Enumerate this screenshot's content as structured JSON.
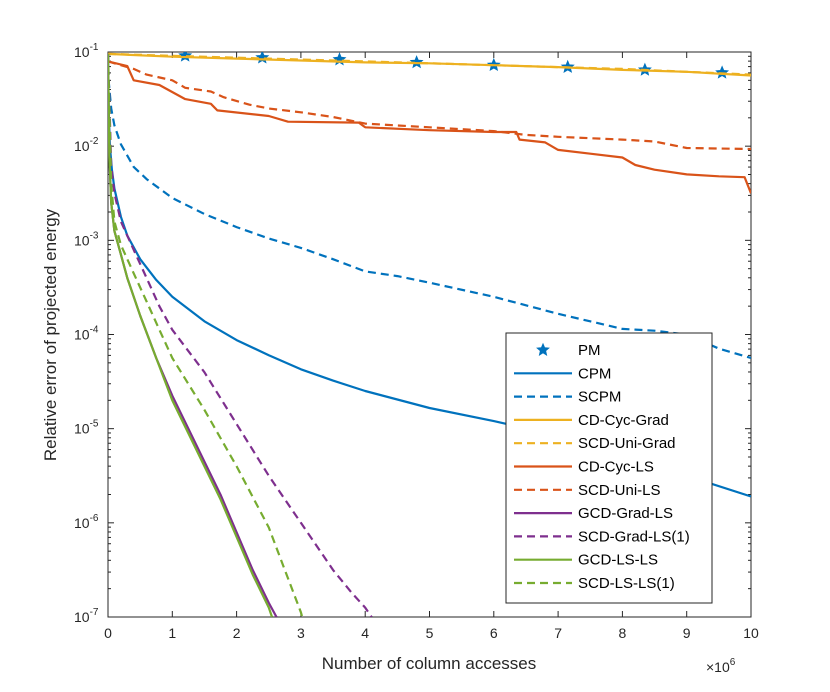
{
  "chart_data": {
    "type": "line",
    "title": "",
    "xlabel": "Number of column accesses",
    "ylabel": "Relative error of projected energy",
    "x_multiplier": "×10",
    "x_exponent": "6",
    "xlim": [
      0,
      10
    ],
    "ylim_log10": [
      -7,
      -1
    ],
    "yscale": "log",
    "x_ticks": [
      0,
      1,
      2,
      3,
      4,
      5,
      6,
      7,
      8,
      9,
      10
    ],
    "x_tick_labels": [
      "0",
      "1",
      "2",
      "3",
      "4",
      "5",
      "6",
      "7",
      "8",
      "9",
      "10"
    ],
    "y_ticks_log10": [
      -7,
      -6,
      -5,
      -4,
      -3,
      -2,
      -1
    ],
    "y_tick_labels": [
      {
        "base": "10",
        "exp": "-7"
      },
      {
        "base": "10",
        "exp": "-6"
      },
      {
        "base": "10",
        "exp": "-5"
      },
      {
        "base": "10",
        "exp": "-4"
      },
      {
        "base": "10",
        "exp": "-3"
      },
      {
        "base": "10",
        "exp": "-2"
      },
      {
        "base": "10",
        "exp": "-1"
      }
    ],
    "legend_position": "lower-right",
    "series": [
      {
        "name": "PM",
        "color": "#0072BD",
        "style": "marker-star",
        "points": [
          [
            1.2,
            -1.04
          ],
          [
            2.4,
            -1.06
          ],
          [
            3.6,
            -1.08
          ],
          [
            4.8,
            -1.11
          ],
          [
            6.0,
            -1.14
          ],
          [
            7.15,
            -1.16
          ],
          [
            8.35,
            -1.19
          ],
          [
            9.55,
            -1.22
          ]
        ]
      },
      {
        "name": "CPM",
        "color": "#0072BD",
        "style": "solid",
        "points": [
          [
            0,
            -1.02
          ],
          [
            0.01,
            -1.6
          ],
          [
            0.03,
            -2.0
          ],
          [
            0.06,
            -2.25
          ],
          [
            0.1,
            -2.45
          ],
          [
            0.2,
            -2.75
          ],
          [
            0.3,
            -2.95
          ],
          [
            0.5,
            -3.2
          ],
          [
            0.75,
            -3.42
          ],
          [
            1.0,
            -3.6
          ],
          [
            1.5,
            -3.86
          ],
          [
            2.0,
            -4.06
          ],
          [
            2.5,
            -4.22
          ],
          [
            3.0,
            -4.37
          ],
          [
            3.5,
            -4.49
          ],
          [
            4.0,
            -4.6
          ],
          [
            5.0,
            -4.78
          ],
          [
            6.0,
            -4.92
          ],
          [
            7.0,
            -5.07
          ],
          [
            8.0,
            -5.23
          ],
          [
            9.0,
            -5.5
          ],
          [
            10.0,
            -5.72
          ]
        ]
      },
      {
        "name": "SCPM",
        "color": "#0072BD",
        "style": "dashed",
        "points": [
          [
            0,
            -1.02
          ],
          [
            0.01,
            -1.3
          ],
          [
            0.05,
            -1.6
          ],
          [
            0.1,
            -1.78
          ],
          [
            0.2,
            -1.98
          ],
          [
            0.4,
            -2.22
          ],
          [
            0.6,
            -2.35
          ],
          [
            0.8,
            -2.45
          ],
          [
            1.0,
            -2.55
          ],
          [
            1.5,
            -2.72
          ],
          [
            2.0,
            -2.86
          ],
          [
            2.5,
            -2.98
          ],
          [
            3.0,
            -3.08
          ],
          [
            3.5,
            -3.2
          ],
          [
            4.0,
            -3.33
          ],
          [
            4.5,
            -3.38
          ],
          [
            5.0,
            -3.45
          ],
          [
            6.0,
            -3.6
          ],
          [
            7.0,
            -3.78
          ],
          [
            8.0,
            -3.94
          ],
          [
            8.5,
            -3.96
          ],
          [
            9.0,
            -4.0
          ],
          [
            9.5,
            -4.15
          ],
          [
            10.0,
            -4.25
          ]
        ]
      },
      {
        "name": "CD-Cyc-Grad",
        "color": "#EDB120",
        "style": "solid",
        "points": [
          [
            0,
            -1.02
          ],
          [
            1,
            -1.05
          ],
          [
            2,
            -1.07
          ],
          [
            3,
            -1.09
          ],
          [
            4,
            -1.11
          ],
          [
            5,
            -1.12
          ],
          [
            6,
            -1.14
          ],
          [
            7,
            -1.16
          ],
          [
            8,
            -1.19
          ],
          [
            9,
            -1.21
          ],
          [
            10,
            -1.25
          ]
        ]
      },
      {
        "name": "SCD-Uni-Grad",
        "color": "#EDB120",
        "style": "dashed",
        "points": [
          [
            0,
            -1.02
          ],
          [
            1,
            -1.04
          ],
          [
            2,
            -1.06
          ],
          [
            3,
            -1.08
          ],
          [
            4,
            -1.1
          ],
          [
            5,
            -1.12
          ],
          [
            6,
            -1.14
          ],
          [
            7,
            -1.16
          ],
          [
            8,
            -1.18
          ],
          [
            9,
            -1.21
          ],
          [
            10,
            -1.24
          ]
        ]
      },
      {
        "name": "CD-Cyc-LS",
        "color": "#D95319",
        "style": "solid",
        "points": [
          [
            0,
            -1.1
          ],
          [
            0.3,
            -1.15
          ],
          [
            0.4,
            -1.3
          ],
          [
            0.8,
            -1.35
          ],
          [
            1.2,
            -1.5
          ],
          [
            1.6,
            -1.55
          ],
          [
            1.7,
            -1.62
          ],
          [
            2.5,
            -1.68
          ],
          [
            2.8,
            -1.74
          ],
          [
            3.9,
            -1.75
          ],
          [
            4.0,
            -1.8
          ],
          [
            5.0,
            -1.83
          ],
          [
            6.0,
            -1.85
          ],
          [
            6.35,
            -1.85
          ],
          [
            6.4,
            -1.93
          ],
          [
            6.8,
            -1.96
          ],
          [
            7.0,
            -2.04
          ],
          [
            7.5,
            -2.08
          ],
          [
            8.0,
            -2.12
          ],
          [
            8.2,
            -2.2
          ],
          [
            8.5,
            -2.25
          ],
          [
            9.0,
            -2.3
          ],
          [
            9.5,
            -2.32
          ],
          [
            9.9,
            -2.33
          ],
          [
            10.0,
            -2.5
          ]
        ]
      },
      {
        "name": "SCD-Uni-LS",
        "color": "#D95319",
        "style": "dashed",
        "points": [
          [
            0,
            -1.1
          ],
          [
            0.4,
            -1.18
          ],
          [
            0.6,
            -1.24
          ],
          [
            1.0,
            -1.3
          ],
          [
            1.2,
            -1.38
          ],
          [
            1.6,
            -1.42
          ],
          [
            1.8,
            -1.48
          ],
          [
            2.2,
            -1.56
          ],
          [
            2.5,
            -1.6
          ],
          [
            3.0,
            -1.64
          ],
          [
            3.5,
            -1.69
          ],
          [
            4.0,
            -1.76
          ],
          [
            5.0,
            -1.8
          ],
          [
            6.0,
            -1.84
          ],
          [
            6.5,
            -1.88
          ],
          [
            7.0,
            -1.9
          ],
          [
            8.0,
            -1.93
          ],
          [
            8.5,
            -1.95
          ],
          [
            9.0,
            -2.02
          ],
          [
            10.0,
            -2.03
          ]
        ]
      },
      {
        "name": "GCD-Grad-LS",
        "color": "#7E2F8E",
        "style": "solid",
        "points": [
          [
            0,
            -1.02
          ],
          [
            0.02,
            -2.1
          ],
          [
            0.05,
            -2.6
          ],
          [
            0.1,
            -2.9
          ],
          [
            0.2,
            -3.15
          ],
          [
            0.3,
            -3.4
          ],
          [
            0.5,
            -3.8
          ],
          [
            0.75,
            -4.25
          ],
          [
            1.0,
            -4.65
          ],
          [
            1.25,
            -5.0
          ],
          [
            1.5,
            -5.35
          ],
          [
            1.75,
            -5.7
          ],
          [
            2.0,
            -6.1
          ],
          [
            2.25,
            -6.5
          ],
          [
            2.5,
            -6.85
          ],
          [
            2.62,
            -7.0
          ]
        ]
      },
      {
        "name": "SCD-Grad-LS(1)",
        "color": "#7E2F8E",
        "style": "dashed",
        "points": [
          [
            0,
            -1.02
          ],
          [
            0.05,
            -2.2
          ],
          [
            0.1,
            -2.5
          ],
          [
            0.2,
            -2.8
          ],
          [
            0.4,
            -3.1
          ],
          [
            0.6,
            -3.4
          ],
          [
            0.8,
            -3.7
          ],
          [
            1.0,
            -3.95
          ],
          [
            1.5,
            -4.4
          ],
          [
            2.0,
            -4.95
          ],
          [
            2.5,
            -5.5
          ],
          [
            3.0,
            -6.0
          ],
          [
            3.5,
            -6.5
          ],
          [
            3.8,
            -6.75
          ],
          [
            4.0,
            -6.9
          ],
          [
            4.1,
            -7.0
          ]
        ]
      },
      {
        "name": "GCD-LS-LS",
        "color": "#77AC30",
        "style": "solid",
        "points": [
          [
            0,
            -1.02
          ],
          [
            0.02,
            -2.1
          ],
          [
            0.05,
            -2.6
          ],
          [
            0.1,
            -2.9
          ],
          [
            0.2,
            -3.15
          ],
          [
            0.3,
            -3.4
          ],
          [
            0.5,
            -3.8
          ],
          [
            0.75,
            -4.25
          ],
          [
            1.0,
            -4.7
          ],
          [
            1.25,
            -5.05
          ],
          [
            1.5,
            -5.4
          ],
          [
            1.75,
            -5.75
          ],
          [
            2.0,
            -6.15
          ],
          [
            2.25,
            -6.55
          ],
          [
            2.5,
            -6.9
          ],
          [
            2.55,
            -7.0
          ]
        ]
      },
      {
        "name": "SCD-LS-LS(1)",
        "color": "#77AC30",
        "style": "dashed",
        "points": [
          [
            0,
            -1.02
          ],
          [
            0.05,
            -2.4
          ],
          [
            0.1,
            -2.8
          ],
          [
            0.2,
            -3.05
          ],
          [
            0.4,
            -3.35
          ],
          [
            0.6,
            -3.65
          ],
          [
            0.8,
            -3.95
          ],
          [
            1.0,
            -4.25
          ],
          [
            1.5,
            -4.8
          ],
          [
            2.0,
            -5.4
          ],
          [
            2.5,
            -6.05
          ],
          [
            2.75,
            -6.5
          ],
          [
            3.0,
            -6.95
          ],
          [
            3.02,
            -7.0
          ]
        ]
      }
    ]
  }
}
